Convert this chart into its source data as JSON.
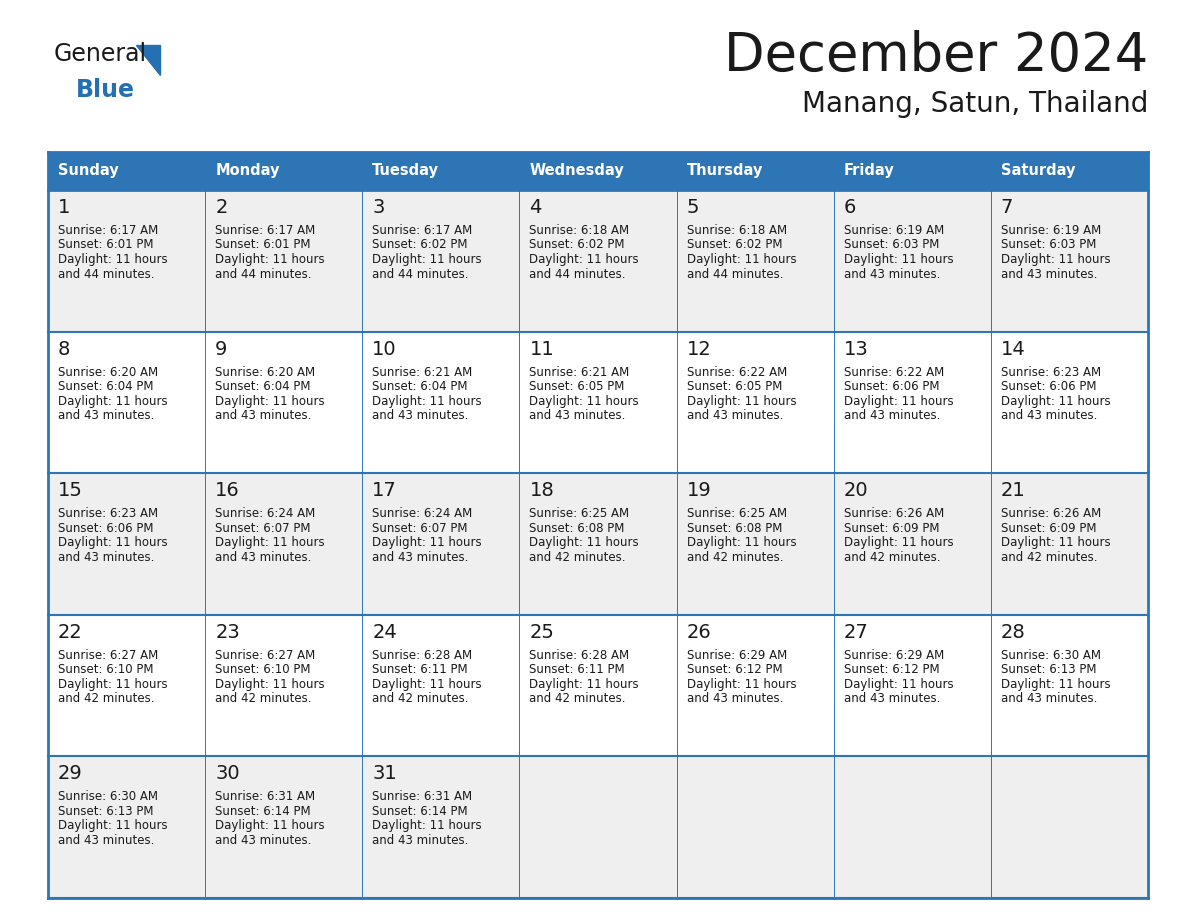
{
  "title": "December 2024",
  "subtitle": "Manang, Satun, Thailand",
  "header_color": "#2E75B6",
  "header_text_color": "#FFFFFF",
  "header_font_size": 10.5,
  "day_number_font_size": 12,
  "cell_text_font_size": 8.5,
  "title_font_size": 38,
  "subtitle_font_size": 20,
  "days_of_week": [
    "Sunday",
    "Monday",
    "Tuesday",
    "Wednesday",
    "Thursday",
    "Friday",
    "Saturday"
  ],
  "logo_color_general": "#1a1a1a",
  "logo_color_blue": "#2470B3",
  "row_colors": [
    "#EFEFEF",
    "#FFFFFF",
    "#EFEFEF",
    "#FFFFFF",
    "#EFEFEF"
  ],
  "border_color": "#2E75B6",
  "cell_border_color": "#CCCCCC",
  "calendar_data": [
    [
      {
        "day": 1,
        "sunrise": "6:17 AM",
        "sunset": "6:01 PM",
        "daylight_hours": 11,
        "daylight_minutes": 44
      },
      {
        "day": 2,
        "sunrise": "6:17 AM",
        "sunset": "6:01 PM",
        "daylight_hours": 11,
        "daylight_minutes": 44
      },
      {
        "day": 3,
        "sunrise": "6:17 AM",
        "sunset": "6:02 PM",
        "daylight_hours": 11,
        "daylight_minutes": 44
      },
      {
        "day": 4,
        "sunrise": "6:18 AM",
        "sunset": "6:02 PM",
        "daylight_hours": 11,
        "daylight_minutes": 44
      },
      {
        "day": 5,
        "sunrise": "6:18 AM",
        "sunset": "6:02 PM",
        "daylight_hours": 11,
        "daylight_minutes": 44
      },
      {
        "day": 6,
        "sunrise": "6:19 AM",
        "sunset": "6:03 PM",
        "daylight_hours": 11,
        "daylight_minutes": 43
      },
      {
        "day": 7,
        "sunrise": "6:19 AM",
        "sunset": "6:03 PM",
        "daylight_hours": 11,
        "daylight_minutes": 43
      }
    ],
    [
      {
        "day": 8,
        "sunrise": "6:20 AM",
        "sunset": "6:04 PM",
        "daylight_hours": 11,
        "daylight_minutes": 43
      },
      {
        "day": 9,
        "sunrise": "6:20 AM",
        "sunset": "6:04 PM",
        "daylight_hours": 11,
        "daylight_minutes": 43
      },
      {
        "day": 10,
        "sunrise": "6:21 AM",
        "sunset": "6:04 PM",
        "daylight_hours": 11,
        "daylight_minutes": 43
      },
      {
        "day": 11,
        "sunrise": "6:21 AM",
        "sunset": "6:05 PM",
        "daylight_hours": 11,
        "daylight_minutes": 43
      },
      {
        "day": 12,
        "sunrise": "6:22 AM",
        "sunset": "6:05 PM",
        "daylight_hours": 11,
        "daylight_minutes": 43
      },
      {
        "day": 13,
        "sunrise": "6:22 AM",
        "sunset": "6:06 PM",
        "daylight_hours": 11,
        "daylight_minutes": 43
      },
      {
        "day": 14,
        "sunrise": "6:23 AM",
        "sunset": "6:06 PM",
        "daylight_hours": 11,
        "daylight_minutes": 43
      }
    ],
    [
      {
        "day": 15,
        "sunrise": "6:23 AM",
        "sunset": "6:06 PM",
        "daylight_hours": 11,
        "daylight_minutes": 43
      },
      {
        "day": 16,
        "sunrise": "6:24 AM",
        "sunset": "6:07 PM",
        "daylight_hours": 11,
        "daylight_minutes": 43
      },
      {
        "day": 17,
        "sunrise": "6:24 AM",
        "sunset": "6:07 PM",
        "daylight_hours": 11,
        "daylight_minutes": 43
      },
      {
        "day": 18,
        "sunrise": "6:25 AM",
        "sunset": "6:08 PM",
        "daylight_hours": 11,
        "daylight_minutes": 42
      },
      {
        "day": 19,
        "sunrise": "6:25 AM",
        "sunset": "6:08 PM",
        "daylight_hours": 11,
        "daylight_minutes": 42
      },
      {
        "day": 20,
        "sunrise": "6:26 AM",
        "sunset": "6:09 PM",
        "daylight_hours": 11,
        "daylight_minutes": 42
      },
      {
        "day": 21,
        "sunrise": "6:26 AM",
        "sunset": "6:09 PM",
        "daylight_hours": 11,
        "daylight_minutes": 42
      }
    ],
    [
      {
        "day": 22,
        "sunrise": "6:27 AM",
        "sunset": "6:10 PM",
        "daylight_hours": 11,
        "daylight_minutes": 42
      },
      {
        "day": 23,
        "sunrise": "6:27 AM",
        "sunset": "6:10 PM",
        "daylight_hours": 11,
        "daylight_minutes": 42
      },
      {
        "day": 24,
        "sunrise": "6:28 AM",
        "sunset": "6:11 PM",
        "daylight_hours": 11,
        "daylight_minutes": 42
      },
      {
        "day": 25,
        "sunrise": "6:28 AM",
        "sunset": "6:11 PM",
        "daylight_hours": 11,
        "daylight_minutes": 42
      },
      {
        "day": 26,
        "sunrise": "6:29 AM",
        "sunset": "6:12 PM",
        "daylight_hours": 11,
        "daylight_minutes": 43
      },
      {
        "day": 27,
        "sunrise": "6:29 AM",
        "sunset": "6:12 PM",
        "daylight_hours": 11,
        "daylight_minutes": 43
      },
      {
        "day": 28,
        "sunrise": "6:30 AM",
        "sunset": "6:13 PM",
        "daylight_hours": 11,
        "daylight_minutes": 43
      }
    ],
    [
      {
        "day": 29,
        "sunrise": "6:30 AM",
        "sunset": "6:13 PM",
        "daylight_hours": 11,
        "daylight_minutes": 43
      },
      {
        "day": 30,
        "sunrise": "6:31 AM",
        "sunset": "6:14 PM",
        "daylight_hours": 11,
        "daylight_minutes": 43
      },
      {
        "day": 31,
        "sunrise": "6:31 AM",
        "sunset": "6:14 PM",
        "daylight_hours": 11,
        "daylight_minutes": 43
      },
      null,
      null,
      null,
      null
    ]
  ]
}
